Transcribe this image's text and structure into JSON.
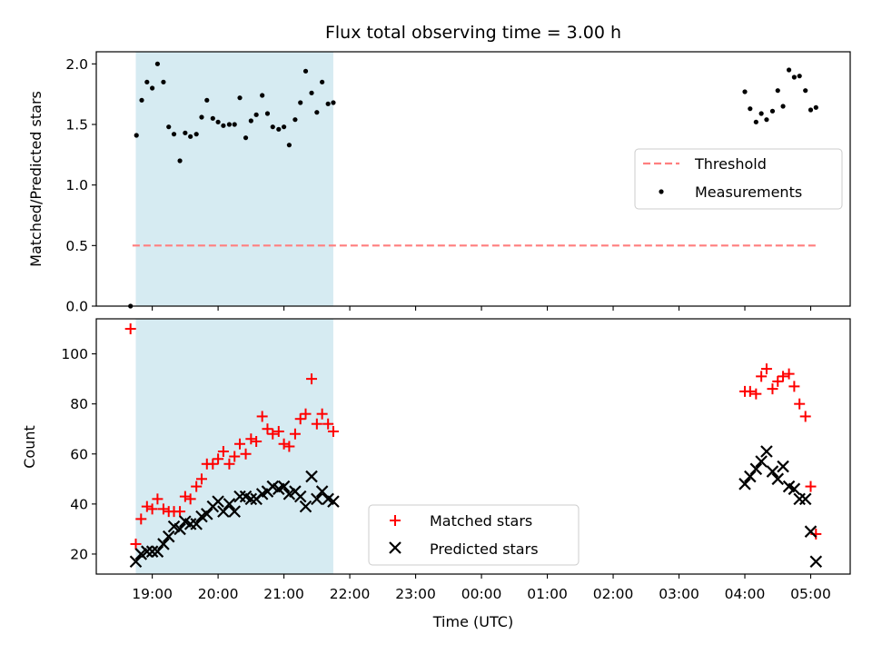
{
  "chart_data": {
    "type": "scatter",
    "title": "Flux total observing time = 3.00 h",
    "colors": {
      "threshold": "#ff7f7f",
      "shaded_window": "#add8e6",
      "measurements": "#000000",
      "matched": "#ff0000",
      "predicted": "#000000"
    },
    "x_axis": {
      "label": "Time (UTC)",
      "units": "hours since 19:00 UTC",
      "ticks": [
        {
          "value": 0,
          "label": "19:00"
        },
        {
          "value": 1,
          "label": "20:00"
        },
        {
          "value": 2,
          "label": "21:00"
        },
        {
          "value": 3,
          "label": "22:00"
        },
        {
          "value": 4,
          "label": "23:00"
        },
        {
          "value": 5,
          "label": "00:00"
        },
        {
          "value": 6,
          "label": "01:00"
        },
        {
          "value": 7,
          "label": "02:00"
        },
        {
          "value": 8,
          "label": "03:00"
        },
        {
          "value": 9,
          "label": "04:00"
        },
        {
          "value": 10,
          "label": "05:00"
        }
      ],
      "range": [
        -0.85,
        10.6
      ]
    },
    "shaded_window": [
      -0.25,
      2.75
    ],
    "panels": [
      {
        "ylabel": "Matched/Predicted stars",
        "ylim": [
          0,
          2.1
        ],
        "yticks": [
          {
            "value": 0,
            "label": "0.0"
          },
          {
            "value": 0.5,
            "label": "0.5"
          },
          {
            "value": 1.0,
            "label": "1.0"
          },
          {
            "value": 1.5,
            "label": "1.5"
          },
          {
            "value": 2.0,
            "label": "2.0"
          }
        ],
        "legend_position": "center-right",
        "legend": [
          {
            "label": "Threshold",
            "marker": "dashed-line"
          },
          {
            "label": "Measurements",
            "marker": "dot"
          }
        ],
        "threshold": {
          "y": 0.5,
          "x_start": -0.3,
          "x_end": 10.1
        },
        "series": [
          {
            "name": "Measurements",
            "marker": "dot",
            "x": [
              -0.33,
              -0.24,
              -0.16,
              -0.08,
              0.0,
              0.08,
              0.17,
              0.25,
              0.33,
              0.42,
              0.5,
              0.58,
              0.67,
              0.75,
              0.83,
              0.92,
              1.0,
              1.08,
              1.17,
              1.25,
              1.33,
              1.42,
              1.5,
              1.58,
              1.67,
              1.75,
              1.83,
              1.92,
              2.0,
              2.08,
              2.17,
              2.25,
              2.33,
              2.42,
              2.5,
              2.58,
              2.67,
              2.75,
              9.0,
              9.08,
              9.17,
              9.25,
              9.33,
              9.42,
              9.5,
              9.58,
              9.67,
              9.75,
              9.83,
              9.92,
              10.0,
              10.08
            ],
            "y": [
              0.0,
              1.41,
              1.7,
              1.85,
              1.8,
              2.0,
              1.85,
              1.48,
              1.42,
              1.2,
              1.43,
              1.4,
              1.42,
              1.56,
              1.7,
              1.55,
              1.52,
              1.49,
              1.5,
              1.5,
              1.72,
              1.39,
              1.53,
              1.58,
              1.74,
              1.59,
              1.48,
              1.46,
              1.48,
              1.33,
              1.54,
              1.68,
              1.94,
              1.76,
              1.6,
              1.85,
              1.67,
              1.68,
              1.77,
              1.63,
              1.52,
              1.59,
              1.54,
              1.61,
              1.78,
              1.65,
              1.95,
              1.89,
              1.9,
              1.78,
              1.62,
              1.64
            ]
          }
        ]
      },
      {
        "ylabel": "Count",
        "ylim": [
          12,
          114
        ],
        "yticks": [
          {
            "value": 20,
            "label": "20"
          },
          {
            "value": 40,
            "label": "40"
          },
          {
            "value": 60,
            "label": "60"
          },
          {
            "value": 80,
            "label": "80"
          },
          {
            "value": 100,
            "label": "100"
          }
        ],
        "legend_position": "lower-center",
        "legend": [
          {
            "label": "Matched stars",
            "marker": "plus"
          },
          {
            "label": "Predicted stars",
            "marker": "x"
          }
        ],
        "series": [
          {
            "name": "Matched stars",
            "marker": "plus",
            "x": [
              -0.33,
              -0.25,
              -0.17,
              -0.08,
              0.0,
              0.08,
              0.17,
              0.25,
              0.33,
              0.42,
              0.5,
              0.58,
              0.67,
              0.75,
              0.83,
              0.92,
              1.0,
              1.08,
              1.17,
              1.25,
              1.33,
              1.42,
              1.5,
              1.58,
              1.67,
              1.75,
              1.83,
              1.92,
              2.0,
              2.08,
              2.17,
              2.25,
              2.33,
              2.42,
              2.5,
              2.58,
              2.67,
              2.75,
              9.0,
              9.08,
              9.17,
              9.25,
              9.33,
              9.42,
              9.5,
              9.58,
              9.67,
              9.75,
              9.83,
              9.92,
              10.0,
              10.08
            ],
            "y": [
              110,
              24,
              34,
              39,
              38,
              42,
              38,
              37,
              37,
              37,
              43,
              42,
              47,
              50,
              56,
              56,
              58,
              61,
              56,
              59,
              64,
              60,
              66,
              65,
              75,
              70,
              68,
              69,
              64,
              63,
              68,
              74,
              76,
              90,
              72,
              76,
              72,
              69,
              85,
              85,
              84,
              91,
              94,
              86,
              89,
              91,
              92,
              87,
              80,
              75,
              47,
              28
            ]
          },
          {
            "name": "Predicted stars",
            "marker": "x",
            "x": [
              -0.25,
              -0.17,
              -0.08,
              0.0,
              0.08,
              0.17,
              0.25,
              0.33,
              0.42,
              0.5,
              0.58,
              0.67,
              0.75,
              0.83,
              0.92,
              1.0,
              1.08,
              1.17,
              1.25,
              1.33,
              1.42,
              1.5,
              1.58,
              1.67,
              1.75,
              1.83,
              1.92,
              2.0,
              2.08,
              2.17,
              2.25,
              2.33,
              2.42,
              2.5,
              2.58,
              2.67,
              2.75,
              9.0,
              9.08,
              9.17,
              9.25,
              9.33,
              9.42,
              9.5,
              9.58,
              9.67,
              9.75,
              9.83,
              9.92,
              10.0,
              10.08
            ],
            "y": [
              17,
              20,
              21,
              21,
              21,
              24,
              27,
              31,
              30,
              33,
              32,
              32,
              35,
              36,
              39,
              41,
              37,
              40,
              37,
              43,
              43,
              42,
              42,
              44,
              45,
              47,
              46,
              47,
              44,
              45,
              43,
              39,
              51,
              42,
              45,
              42,
              41,
              48,
              51,
              54,
              57,
              61,
              53,
              50,
              55,
              47,
              46,
              42,
              42,
              29,
              17
            ]
          }
        ]
      }
    ]
  }
}
